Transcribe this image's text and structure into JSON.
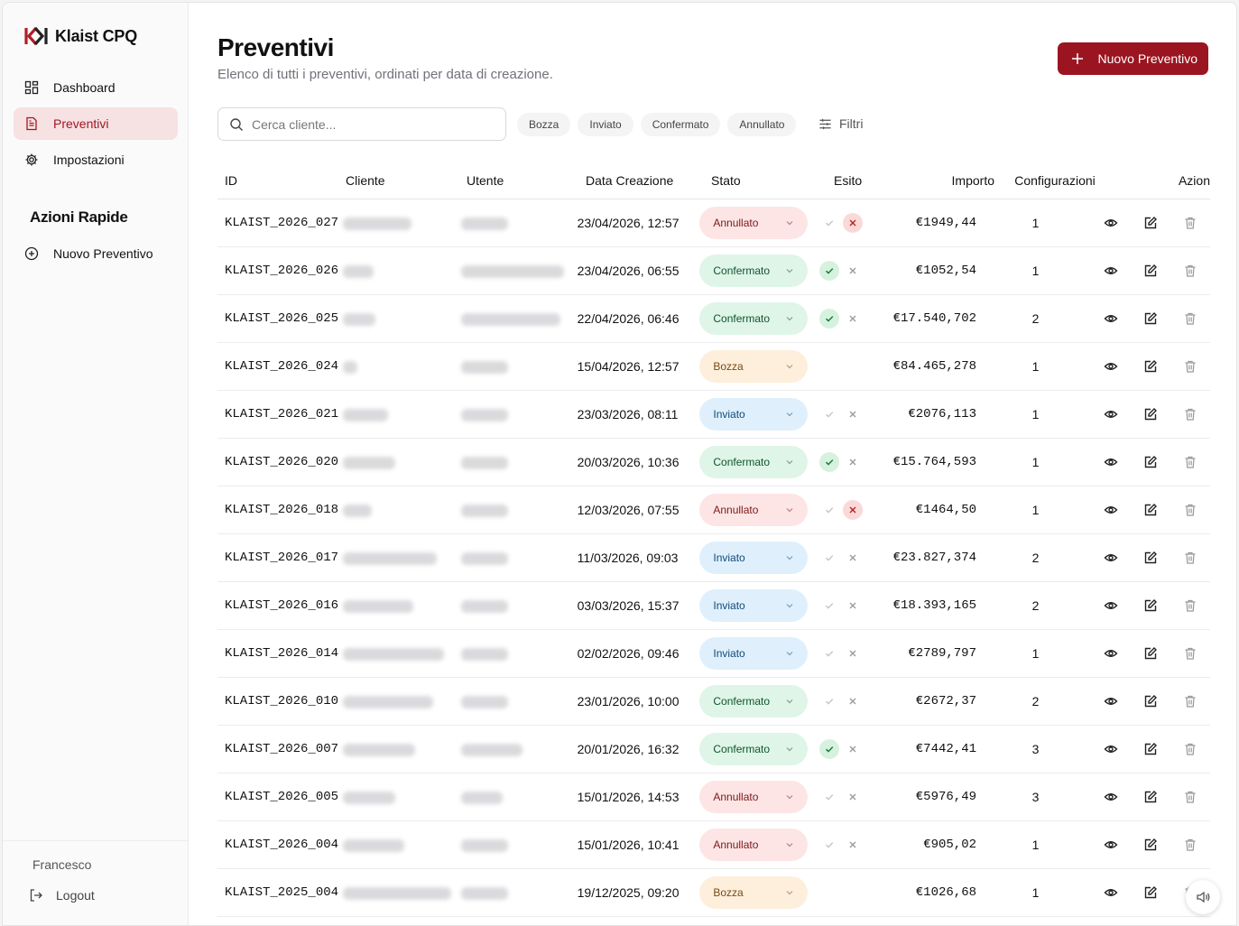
{
  "app": {
    "name": "Klaist CPQ",
    "brand_color": "#9b1520"
  },
  "sidebar": {
    "items": [
      {
        "label": "Dashboard",
        "icon": "grid-icon"
      },
      {
        "label": "Preventivi",
        "icon": "document-icon",
        "active": true
      },
      {
        "label": "Impostazioni",
        "icon": "gear-icon"
      }
    ],
    "quick_title": "Azioni Rapide",
    "quick_items": [
      {
        "label": "Nuovo Preventivo",
        "icon": "plus-circle-icon"
      }
    ],
    "user": "Francesco",
    "logout": "Logout"
  },
  "header": {
    "title": "Preventivi",
    "subtitle": "Elenco di tutti i preventivi, ordinati per data di creazione.",
    "new_button": "Nuovo Preventivo"
  },
  "search": {
    "placeholder": "Cerca cliente...",
    "value": ""
  },
  "filters": {
    "chips": [
      "Bozza",
      "Inviato",
      "Confermato",
      "Annullato"
    ],
    "label": "Filtri"
  },
  "table": {
    "columns": [
      "ID",
      "Cliente",
      "Utente",
      "Data Creazione",
      "Stato",
      "Esito",
      "Importo",
      "Configurazioni",
      "Azion"
    ],
    "rows": [
      {
        "id": "KLAIST_2026_027",
        "date": "23/04/2026, 12:57",
        "status": "Annullato",
        "esito": "ko",
        "amount": "€1949,44",
        "config": "1"
      },
      {
        "id": "KLAIST_2026_026",
        "date": "23/04/2026, 06:55",
        "status": "Confermato",
        "esito": "ok",
        "amount": "€1052,54",
        "config": "1"
      },
      {
        "id": "KLAIST_2026_025",
        "date": "22/04/2026, 06:46",
        "status": "Confermato",
        "esito": "ok",
        "amount": "€17.540,702",
        "config": "2"
      },
      {
        "id": "KLAIST_2026_024",
        "date": "15/04/2026, 12:57",
        "status": "Bozza",
        "esito": "none",
        "amount": "€84.465,278",
        "config": "1"
      },
      {
        "id": "KLAIST_2026_021",
        "date": "23/03/2026, 08:11",
        "status": "Inviato",
        "esito": "neutral",
        "amount": "€2076,113",
        "config": "1"
      },
      {
        "id": "KLAIST_2026_020",
        "date": "20/03/2026, 10:36",
        "status": "Confermato",
        "esito": "ok",
        "amount": "€15.764,593",
        "config": "1"
      },
      {
        "id": "KLAIST_2026_018",
        "date": "12/03/2026, 07:55",
        "status": "Annullato",
        "esito": "ko",
        "amount": "€1464,50",
        "config": "1"
      },
      {
        "id": "KLAIST_2026_017",
        "date": "11/03/2026, 09:03",
        "status": "Inviato",
        "esito": "neutral",
        "amount": "€23.827,374",
        "config": "2"
      },
      {
        "id": "KLAIST_2026_016",
        "date": "03/03/2026, 15:37",
        "status": "Inviato",
        "esito": "neutral",
        "amount": "€18.393,165",
        "config": "2"
      },
      {
        "id": "KLAIST_2026_014",
        "date": "02/02/2026, 09:46",
        "status": "Inviato",
        "esito": "neutral",
        "amount": "€2789,797",
        "config": "1"
      },
      {
        "id": "KLAIST_2026_010",
        "date": "23/01/2026, 10:00",
        "status": "Confermato",
        "esito": "neutral",
        "amount": "€2672,37",
        "config": "2"
      },
      {
        "id": "KLAIST_2026_007",
        "date": "20/01/2026, 16:32",
        "status": "Confermato",
        "esito": "ok",
        "amount": "€7442,41",
        "config": "3"
      },
      {
        "id": "KLAIST_2026_005",
        "date": "15/01/2026, 14:53",
        "status": "Annullato",
        "esito": "neutral",
        "amount": "€5976,49",
        "config": "3"
      },
      {
        "id": "KLAIST_2026_004",
        "date": "15/01/2026, 10:41",
        "status": "Annullato",
        "esito": "neutral",
        "amount": "€905,02",
        "config": "1"
      },
      {
        "id": "KLAIST_2025_004",
        "date": "19/12/2025, 09:20",
        "status": "Bozza",
        "esito": "none",
        "amount": "€1026,68",
        "config": "1"
      }
    ]
  }
}
